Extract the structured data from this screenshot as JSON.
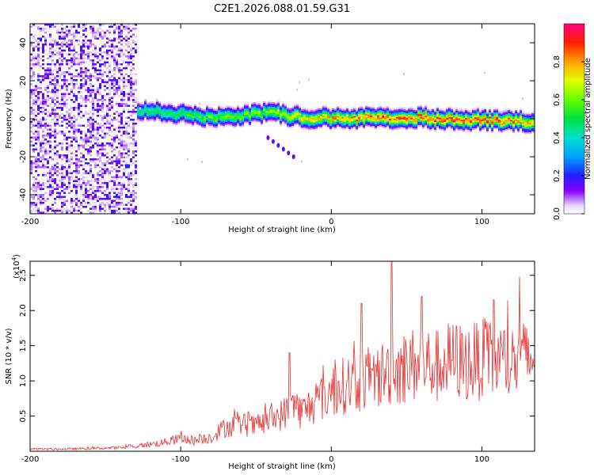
{
  "title": "C2E1.2026.088.01.59.G31",
  "chart_data": [
    {
      "type": "heatmap",
      "title": "C2E1.2026.088.01.59.G31",
      "xlabel": "Height of straight line (km)",
      "ylabel": "Frequency (Hz)",
      "xlim": [
        -200,
        135
      ],
      "ylim": [
        -50,
        50
      ],
      "x_ticks": [
        -200,
        -100,
        0,
        100
      ],
      "y_ticks": [
        -40,
        -20,
        0,
        20,
        40
      ],
      "colorbar": {
        "label": "Normalized spectral amplitude",
        "range": [
          0,
          1
        ],
        "ticks": [
          0.0,
          0.2,
          0.4,
          0.6,
          0.8
        ]
      },
      "ridge": {
        "description_points_x": [
          -160,
          -130,
          -100,
          -80,
          -60,
          -40,
          -20,
          0,
          20,
          40,
          60,
          80,
          100,
          120,
          135
        ],
        "frequency_hz": [
          6,
          5,
          3,
          1,
          2,
          4,
          1,
          1,
          1,
          1,
          1,
          0,
          0,
          -1,
          -1
        ],
        "peak_amplitude": [
          0.35,
          0.5,
          0.55,
          0.6,
          0.6,
          0.65,
          0.75,
          0.8,
          0.85,
          0.9,
          0.9,
          0.92,
          0.92,
          0.85,
          0.8
        ]
      },
      "noise_region_x": [
        -200,
        -130
      ],
      "streak": {
        "x": [
          -42,
          -25
        ],
        "y": [
          -10,
          -20
        ]
      }
    },
    {
      "type": "line",
      "xlabel": "Height of straight line (km)",
      "ylabel": "SNR (10 * v/v)",
      "y_scale_label": "(x10",
      "y_scale_exp": "4",
      "xlim": [
        -200,
        135
      ],
      "ylim": [
        0,
        27000
      ],
      "x_ticks": [
        -200,
        -100,
        0,
        100
      ],
      "y_ticks": [
        0.5,
        1.0,
        1.5,
        2.0,
        2.5
      ],
      "series": [
        {
          "name": "SNR",
          "color": "#e53030",
          "x": [
            -200,
            -180,
            -160,
            -140,
            -130,
            -120,
            -110,
            -100,
            -90,
            -80,
            -70,
            -60,
            -50,
            -40,
            -30,
            -25,
            -20,
            -10,
            0,
            10,
            20,
            30,
            40,
            50,
            60,
            70,
            80,
            90,
            100,
            110,
            120,
            130,
            135
          ],
          "values": [
            300,
            300,
            400,
            500,
            700,
            1000,
            1300,
            1800,
            1500,
            2000,
            3500,
            3800,
            3500,
            4500,
            5500,
            7000,
            5500,
            7000,
            8500,
            9500,
            10000,
            10500,
            11500,
            12000,
            12500,
            12000,
            13000,
            12500,
            13000,
            13000,
            12500,
            13000,
            13500
          ],
          "spikes": [
            {
              "x": -28,
              "y": 14000
            },
            {
              "x": 20,
              "y": 21000
            },
            {
              "x": 40,
              "y": 27000
            },
            {
              "x": 60,
              "y": 22000
            },
            {
              "x": 108,
              "y": 21500
            },
            {
              "x": 125,
              "y": 24800
            }
          ]
        }
      ]
    }
  ]
}
